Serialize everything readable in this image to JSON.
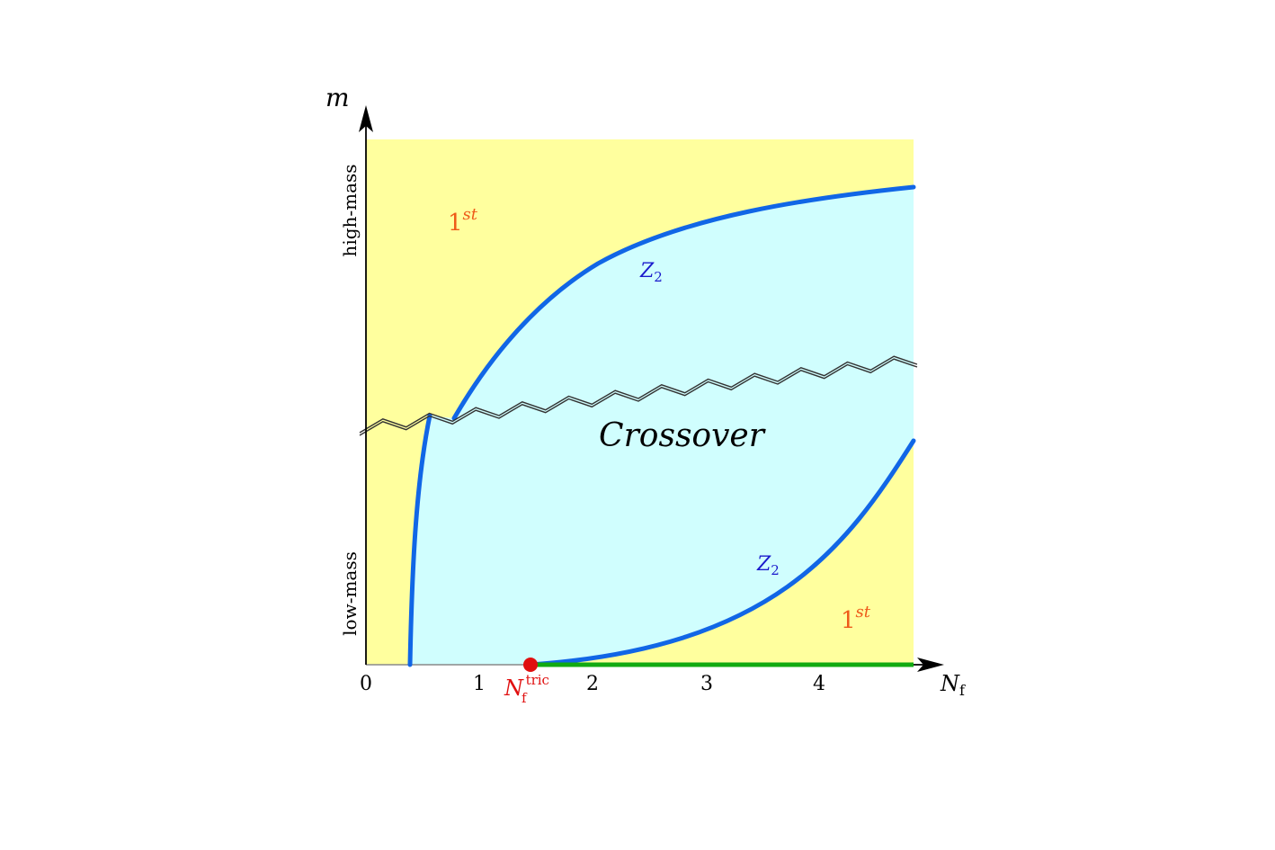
{
  "axes": {
    "y_symbol": "m",
    "x_symbol": "N",
    "x_symbol_sub": "f",
    "ticks": [
      "0",
      "1",
      "2",
      "3",
      "4"
    ],
    "y_high_label": "high-mass",
    "y_low_label": "low-mass"
  },
  "regions": {
    "first_order_top": {
      "base": "1",
      "sup": "st"
    },
    "first_order_bottom": {
      "base": "1",
      "sup": "st"
    },
    "crossover": "Crossover"
  },
  "lines": {
    "z2_upper": {
      "base": "Z",
      "sub": "2"
    },
    "z2_lower": {
      "base": "Z",
      "sub": "2"
    }
  },
  "tricritical": {
    "base": "N",
    "sub": "f",
    "sup": "tric"
  },
  "colors": {
    "first_order_fill": "#ffff9e",
    "crossover_fill": "#d0fefe",
    "z2_line": "#1166e6",
    "z2_label": "#1a1acc",
    "first_order_label": "#ee5a1a",
    "tricritical": "#e01010",
    "first_order_line": "#11aa11"
  }
}
